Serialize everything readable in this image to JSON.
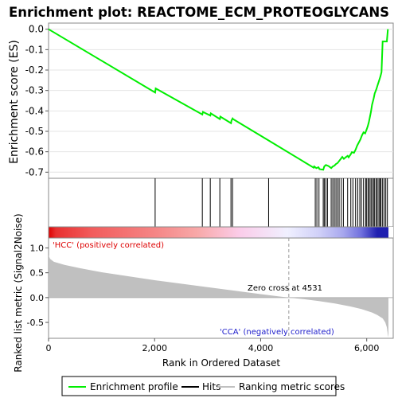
{
  "chart_data": {
    "type": "line",
    "title": "Enrichment plot: REACTOME_ECM_PROTEOGLYCANS",
    "xlabel": "Rank in Ordered Dataset",
    "top_panel": {
      "ylabel": "Enrichment score (ES)",
      "ylim": [
        -0.73,
        0.03
      ],
      "yticks": [
        "0.0",
        "-0.1",
        "-0.2",
        "-0.3",
        "-0.4",
        "-0.5",
        "-0.6",
        "-0.7"
      ],
      "ytick_values": [
        0.0,
        -0.1,
        -0.2,
        -0.3,
        -0.4,
        -0.5,
        -0.6,
        -0.7
      ],
      "grid": true,
      "series": [
        {
          "name": "Enrichment profile",
          "color": "#00ee00",
          "x": [
            0,
            2010,
            2020,
            2900,
            2910,
            3050,
            3060,
            3230,
            3240,
            3440,
            3450,
            3470,
            3480,
            4150,
            5000,
            5010,
            5050,
            5090,
            5110,
            5180,
            5200,
            5230,
            5280,
            5330,
            5360,
            5390,
            5420,
            5450,
            5480,
            5510,
            5540,
            5570,
            5600,
            5640,
            5660,
            5700,
            5720,
            5760,
            5790,
            5820,
            5850,
            5880,
            5910,
            5940,
            5970,
            6000,
            6020,
            6040,
            6060,
            6080,
            6100,
            6130,
            6150,
            6180,
            6210,
            6230,
            6260,
            6280,
            6300,
            6320,
            6340,
            6380,
            6400
          ],
          "y": [
            0.0,
            -0.31,
            -0.29,
            -0.418,
            -0.405,
            -0.423,
            -0.412,
            -0.44,
            -0.428,
            -0.46,
            -0.447,
            -0.437,
            -0.44,
            -0.545,
            -0.678,
            -0.672,
            -0.68,
            -0.676,
            -0.685,
            -0.688,
            -0.672,
            -0.665,
            -0.67,
            -0.68,
            -0.672,
            -0.668,
            -0.66,
            -0.655,
            -0.645,
            -0.635,
            -0.625,
            -0.635,
            -0.628,
            -0.62,
            -0.627,
            -0.612,
            -0.602,
            -0.605,
            -0.59,
            -0.57,
            -0.555,
            -0.54,
            -0.52,
            -0.505,
            -0.51,
            -0.49,
            -0.475,
            -0.455,
            -0.43,
            -0.405,
            -0.37,
            -0.34,
            -0.315,
            -0.295,
            -0.27,
            -0.255,
            -0.23,
            -0.21,
            -0.06,
            -0.06,
            -0.06,
            -0.06,
            0.0
          ]
        }
      ]
    },
    "hits": {
      "name": "Hits",
      "color": "#000000",
      "x": [
        2010,
        2900,
        3050,
        3230,
        3440,
        3470,
        4150,
        5030,
        5060,
        5100,
        5180,
        5200,
        5230,
        5260,
        5330,
        5360,
        5390,
        5420,
        5450,
        5480,
        5520,
        5560,
        5640,
        5700,
        5740,
        5790,
        5830,
        5870,
        5900,
        5940,
        5980,
        6000,
        6030,
        6050,
        6080,
        6100,
        6130,
        6150,
        6180,
        6200,
        6230,
        6250,
        6270,
        6300,
        6330,
        6360,
        6390
      ]
    },
    "ranking_band": {
      "stops": [
        {
          "x": 0,
          "color": "#dd0000"
        },
        {
          "x": 140,
          "color": "#e83030"
        },
        {
          "x": 820,
          "color": "#f25c5c"
        },
        {
          "x": 2000,
          "color": "#f58585"
        },
        {
          "x": 2800,
          "color": "#f8a8a8"
        },
        {
          "x": 3620,
          "color": "#fbcdea"
        },
        {
          "x": 4500,
          "color": "#f0f0ff"
        },
        {
          "x": 5100,
          "color": "#d0d0f8"
        },
        {
          "x": 5550,
          "color": "#a8a8ee"
        },
        {
          "x": 5900,
          "color": "#7070dd"
        },
        {
          "x": 6200,
          "color": "#2020b0"
        },
        {
          "x": 6410,
          "color": "#2020b0"
        }
      ]
    },
    "bottom_panel": {
      "ylabel": "Ranked list metric (Signal2Noise)",
      "ylim": [
        -0.82,
        1.2
      ],
      "yticks": [
        "1.0",
        "0.5",
        "0.0",
        "-0.5"
      ],
      "ytick_values": [
        1.0,
        0.5,
        0.0,
        -0.5
      ],
      "series": [
        {
          "name": "Ranking metric scores",
          "color": "#c0c0c0",
          "x": [
            0,
            30,
            100,
            300,
            600,
            1000,
            1500,
            2000,
            2500,
            3000,
            3500,
            4000,
            4300,
            4531,
            4800,
            5100,
            5400,
            5700,
            5900,
            6100,
            6200,
            6300,
            6350,
            6380,
            6400,
            6410
          ],
          "y": [
            0.85,
            0.78,
            0.72,
            0.66,
            0.59,
            0.51,
            0.43,
            0.35,
            0.28,
            0.21,
            0.14,
            0.07,
            0.03,
            0.0,
            -0.03,
            -0.07,
            -0.12,
            -0.18,
            -0.23,
            -0.3,
            -0.35,
            -0.42,
            -0.5,
            -0.6,
            -0.75,
            -0.8
          ]
        }
      ],
      "zero_cross_label": "Zero cross at 4531",
      "zero_cross_x": 4531,
      "pos_label": "'HCC' (positively correlated)",
      "neg_label": "'CCA' (negatively correlated)"
    },
    "xlim": [
      0,
      6500
    ],
    "xticks": [
      "0",
      "2,000",
      "4,000",
      "6,000"
    ],
    "xtick_values": [
      0,
      2000,
      4000,
      6000
    ],
    "legend": {
      "placement": "bottom",
      "items": [
        {
          "label": "Enrichment profile",
          "color": "#00ee00"
        },
        {
          "label": "Hits",
          "color": "#000000"
        },
        {
          "label": "Ranking metric scores",
          "color": "#c0c0c0"
        }
      ]
    }
  }
}
